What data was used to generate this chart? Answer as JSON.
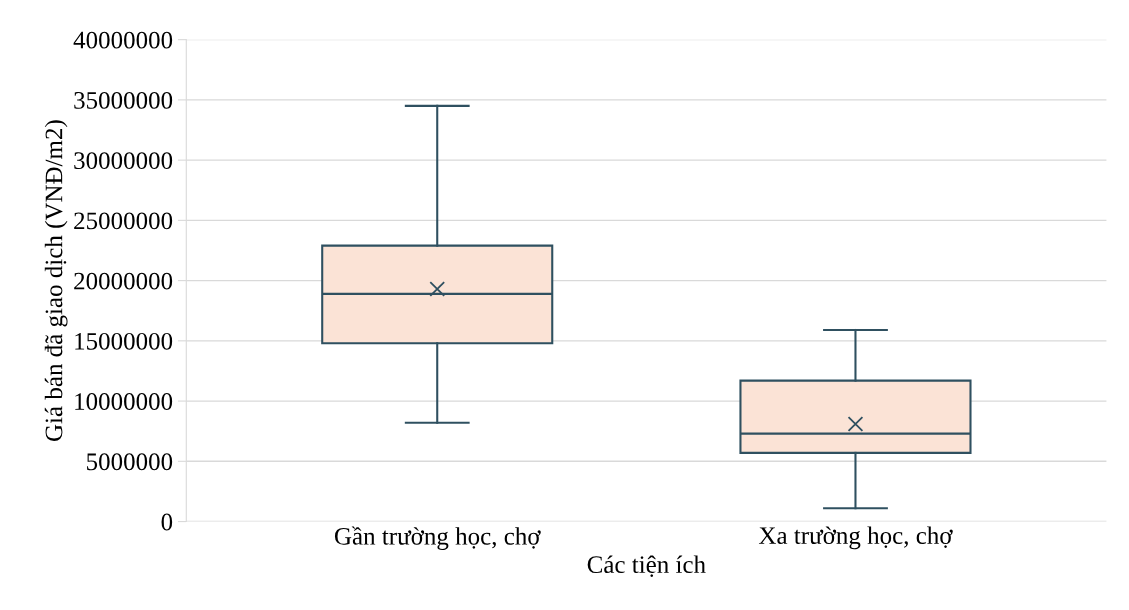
{
  "chart_data": {
    "type": "box",
    "xlabel": "Các tiện ích",
    "ylabel": "Giá bán đã giao dịch (VNĐ/m2)",
    "categories": [
      "Gần trường học, chợ",
      "Xa trường học, chợ"
    ],
    "boxes": [
      {
        "low": 8200000,
        "q1": 14800000,
        "median": 18900000,
        "q3": 22900000,
        "high": 34500000,
        "mean": 19300000
      },
      {
        "low": 1100000,
        "q1": 5700000,
        "median": 7300000,
        "q3": 11700000,
        "high": 15900000,
        "mean": 8100000
      }
    ],
    "color": "#fbe3d6",
    "ylim": [
      0,
      40000000
    ],
    "yticks": [
      0,
      5000000,
      10000000,
      15000000,
      20000000,
      25000000,
      30000000,
      35000000,
      40000000
    ],
    "grid": "y",
    "legend": false
  }
}
